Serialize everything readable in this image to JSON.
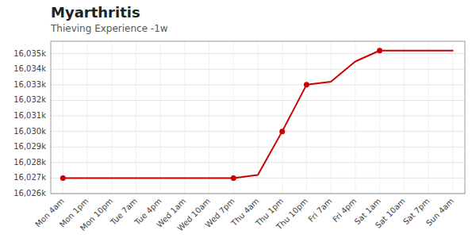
{
  "chart_data": {
    "type": "line",
    "title": "Myarthritis",
    "subtitle": "Thieving Experience -1w",
    "categories": [
      "Mon 4am",
      "Mon 1pm",
      "Mon 10pm",
      "Tue 7am",
      "Tue 4pm",
      "Wed 1am",
      "Wed 10am",
      "Wed 7pm",
      "Thu 4am",
      "Thu 1pm",
      "Thu 10pm",
      "Fri 7am",
      "Fri 4pm",
      "Sat 1am",
      "Sat 10am",
      "Sat 7pm",
      "Sun 4am"
    ],
    "series": [
      {
        "type": "line",
        "color": "#cc0000",
        "marker": "none",
        "values": [
          16027.0,
          16027.0,
          16027.0,
          16027.0,
          16027.0,
          16027.0,
          16027.0,
          16027.0,
          16027.2,
          16030.0,
          16033.0,
          16033.2,
          16034.5,
          16035.2,
          16035.2,
          16035.2,
          16035.2
        ]
      },
      {
        "type": "scatter",
        "color": "#cc0000",
        "marker": "circle",
        "values": [
          16027.0,
          null,
          null,
          null,
          null,
          null,
          null,
          16027.0,
          null,
          16030.0,
          16033.0,
          null,
          null,
          16035.2,
          null,
          null,
          null
        ]
      }
    ],
    "ylim": [
      16026.0,
      16035.8
    ],
    "yticks": [
      {
        "value": 16026,
        "label": "16,026k"
      },
      {
        "value": 16027,
        "label": "16,027k"
      },
      {
        "value": 16028,
        "label": "16,028k"
      },
      {
        "value": 16029,
        "label": "16,029k"
      },
      {
        "value": 16030,
        "label": "16,030k"
      },
      {
        "value": 16031,
        "label": "16,031k"
      },
      {
        "value": 16032,
        "label": "16,032k"
      },
      {
        "value": 16033,
        "label": "16,033k"
      },
      {
        "value": 16034,
        "label": "16,034k"
      },
      {
        "value": 16035,
        "label": "16,035k"
      }
    ],
    "grid": true
  }
}
